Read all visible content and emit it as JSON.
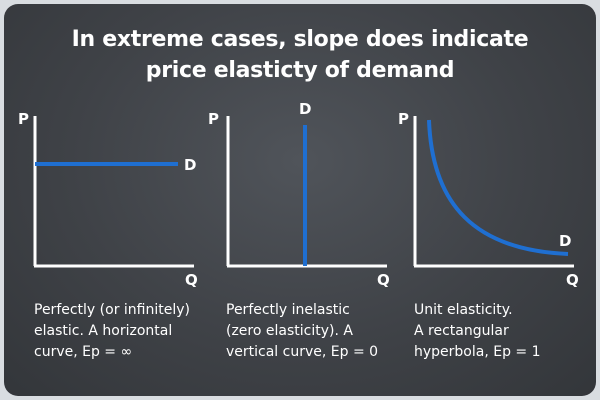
{
  "title": {
    "line1": "In extreme cases, slope does indicate",
    "line2": "price elasticty of demand"
  },
  "panels": [
    {
      "p_label": "P",
      "q_label": "Q",
      "curve_label": "D",
      "caption": [
        "Perfectly (or infinitely)",
        "elastic. A horizontal",
        "curve, Ep = ∞"
      ]
    },
    {
      "p_label": "P",
      "q_label": "Q",
      "curve_label": "D",
      "caption": [
        "Perfectly inelastic",
        "(zero elasticity). A",
        "vertical curve, Ep = 0"
      ]
    },
    {
      "p_label": "P",
      "q_label": "Q",
      "curve_label": "D",
      "caption": [
        "Unit elasticity.",
        "A rectangular",
        "hyperbola, Ep = 1"
      ]
    }
  ],
  "colors": {
    "curve": "#1f6fd1",
    "axis": "#ffffff",
    "background": "#45484d",
    "text": "#ffffff"
  }
}
